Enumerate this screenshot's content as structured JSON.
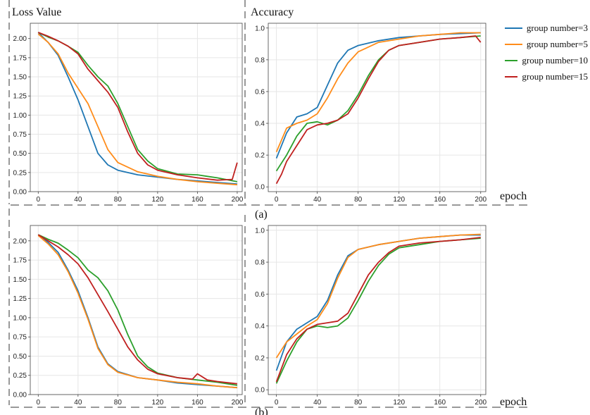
{
  "colors": {
    "group3": "#1f77b4",
    "group5": "#ff8c1a",
    "group10": "#2ca02c",
    "group15": "#c0201f"
  },
  "labels": {
    "loss_title": "Loss Value",
    "acc_title": "Accuracy",
    "epoch_top": "epoch",
    "epoch_bottom": "epoch",
    "sub_a": "(a)",
    "sub_b": "(b)"
  },
  "legend": [
    {
      "label": "group number=3",
      "color": "#1f77b4"
    },
    {
      "label": "group number=5",
      "color": "#ff8c1a"
    },
    {
      "label": "group number=10",
      "color": "#2ca02c"
    },
    {
      "label": "group number=15",
      "color": "#c0201f"
    }
  ],
  "chart_data": [
    {
      "id": "a-loss",
      "type": "line",
      "title": "Loss Value",
      "xlabel": "epoch",
      "ylabel": "",
      "xlim": [
        -8,
        205
      ],
      "ylim": [
        0,
        2.2
      ],
      "xticks": [
        0,
        40,
        80,
        120,
        160,
        200
      ],
      "yticks": [
        0.0,
        0.25,
        0.5,
        0.75,
        1.0,
        1.25,
        1.5,
        1.75,
        2.0
      ],
      "ytick_labels": [
        "0.00",
        "0.25",
        "0.50",
        "0.75",
        "1.00",
        "1.25",
        "1.50",
        "1.75",
        "2.00"
      ],
      "grid": true,
      "series": [
        {
          "name": "group number=3",
          "color": "#1f77b4",
          "x": [
            0,
            10,
            20,
            30,
            40,
            50,
            60,
            70,
            80,
            100,
            120,
            140,
            160,
            180,
            200
          ],
          "y": [
            2.08,
            1.95,
            1.78,
            1.5,
            1.2,
            0.85,
            0.5,
            0.35,
            0.28,
            0.22,
            0.19,
            0.16,
            0.14,
            0.12,
            0.1
          ]
        },
        {
          "name": "group number=5",
          "color": "#ff8c1a",
          "x": [
            0,
            10,
            20,
            30,
            40,
            50,
            60,
            70,
            80,
            100,
            120,
            140,
            160,
            180,
            200
          ],
          "y": [
            2.06,
            1.95,
            1.8,
            1.55,
            1.35,
            1.15,
            0.85,
            0.55,
            0.38,
            0.26,
            0.2,
            0.16,
            0.13,
            0.11,
            0.09
          ]
        },
        {
          "name": "group number=10",
          "color": "#2ca02c",
          "x": [
            0,
            10,
            20,
            30,
            40,
            50,
            60,
            70,
            80,
            90,
            100,
            110,
            120,
            140,
            160,
            170,
            180,
            200
          ],
          "y": [
            2.08,
            2.02,
            1.97,
            1.9,
            1.82,
            1.65,
            1.5,
            1.38,
            1.15,
            0.85,
            0.55,
            0.4,
            0.3,
            0.23,
            0.22,
            0.2,
            0.18,
            0.13
          ]
        },
        {
          "name": "group number=15",
          "color": "#c0201f",
          "x": [
            0,
            10,
            20,
            30,
            40,
            50,
            60,
            70,
            80,
            90,
            100,
            110,
            120,
            140,
            160,
            180,
            195,
            200
          ],
          "y": [
            2.08,
            2.03,
            1.97,
            1.9,
            1.8,
            1.6,
            1.45,
            1.3,
            1.1,
            0.78,
            0.5,
            0.35,
            0.28,
            0.22,
            0.18,
            0.15,
            0.16,
            0.38
          ]
        }
      ]
    },
    {
      "id": "a-acc",
      "type": "line",
      "title": "Accuracy",
      "xlabel": "epoch",
      "ylabel": "",
      "xlim": [
        -8,
        205
      ],
      "ylim": [
        -0.03,
        1.03
      ],
      "xticks": [
        0,
        40,
        80,
        120,
        160,
        200
      ],
      "yticks": [
        0.0,
        0.2,
        0.4,
        0.6,
        0.8,
        1.0
      ],
      "ytick_labels": [
        "0.0",
        "0.2",
        "0.4",
        "0.6",
        "0.8",
        "1.0"
      ],
      "grid": true,
      "series": [
        {
          "name": "group number=3",
          "color": "#1f77b4",
          "x": [
            0,
            10,
            20,
            30,
            40,
            50,
            60,
            70,
            80,
            100,
            120,
            140,
            160,
            180,
            200
          ],
          "y": [
            0.18,
            0.34,
            0.44,
            0.46,
            0.5,
            0.64,
            0.78,
            0.86,
            0.89,
            0.92,
            0.94,
            0.95,
            0.96,
            0.965,
            0.97
          ]
        },
        {
          "name": "group number=5",
          "color": "#ff8c1a",
          "x": [
            0,
            10,
            20,
            30,
            40,
            50,
            60,
            70,
            80,
            100,
            120,
            140,
            160,
            180,
            200
          ],
          "y": [
            0.22,
            0.37,
            0.4,
            0.42,
            0.46,
            0.56,
            0.68,
            0.78,
            0.85,
            0.91,
            0.93,
            0.95,
            0.96,
            0.97,
            0.97
          ]
        },
        {
          "name": "group number=10",
          "color": "#2ca02c",
          "x": [
            0,
            10,
            20,
            30,
            40,
            50,
            60,
            70,
            80,
            90,
            100,
            110,
            120,
            140,
            160,
            180,
            200
          ],
          "y": [
            0.1,
            0.2,
            0.32,
            0.4,
            0.41,
            0.39,
            0.42,
            0.48,
            0.58,
            0.7,
            0.8,
            0.86,
            0.89,
            0.91,
            0.93,
            0.94,
            0.95
          ]
        },
        {
          "name": "group number=15",
          "color": "#c0201f",
          "x": [
            0,
            5,
            10,
            20,
            30,
            40,
            50,
            60,
            70,
            80,
            90,
            100,
            110,
            120,
            140,
            160,
            180,
            195,
            200
          ],
          "y": [
            0.02,
            0.08,
            0.16,
            0.26,
            0.36,
            0.39,
            0.4,
            0.42,
            0.46,
            0.56,
            0.68,
            0.79,
            0.86,
            0.89,
            0.91,
            0.93,
            0.94,
            0.95,
            0.91
          ]
        }
      ]
    },
    {
      "id": "b-loss",
      "type": "line",
      "title": "",
      "xlabel": "epoch",
      "ylabel": "",
      "xlim": [
        -8,
        205
      ],
      "ylim": [
        0,
        2.2
      ],
      "xticks": [
        0,
        40,
        80,
        120,
        160,
        200
      ],
      "yticks": [
        0.0,
        0.25,
        0.5,
        0.75,
        1.0,
        1.25,
        1.5,
        1.75,
        2.0
      ],
      "ytick_labels": [
        "0.00",
        "0.25",
        "0.50",
        "0.75",
        "1.00",
        "1.25",
        "1.50",
        "1.75",
        "2.00"
      ],
      "grid": true,
      "series": [
        {
          "name": "group number=3",
          "color": "#1f77b4",
          "x": [
            0,
            10,
            20,
            30,
            40,
            50,
            60,
            70,
            80,
            100,
            120,
            140,
            160,
            180,
            200
          ],
          "y": [
            2.08,
            1.98,
            1.85,
            1.62,
            1.35,
            1.0,
            0.62,
            0.4,
            0.3,
            0.22,
            0.19,
            0.15,
            0.13,
            0.11,
            0.09
          ]
        },
        {
          "name": "group number=5",
          "color": "#ff8c1a",
          "x": [
            0,
            10,
            20,
            30,
            40,
            50,
            60,
            70,
            80,
            100,
            120,
            140,
            160,
            180,
            200
          ],
          "y": [
            2.07,
            1.96,
            1.82,
            1.6,
            1.32,
            0.98,
            0.6,
            0.39,
            0.29,
            0.22,
            0.19,
            0.16,
            0.14,
            0.11,
            0.09
          ]
        },
        {
          "name": "group number=10",
          "color": "#2ca02c",
          "x": [
            0,
            10,
            20,
            30,
            40,
            50,
            60,
            70,
            80,
            90,
            100,
            110,
            120,
            140,
            160,
            180,
            200
          ],
          "y": [
            2.08,
            2.02,
            1.97,
            1.88,
            1.78,
            1.62,
            1.52,
            1.35,
            1.1,
            0.78,
            0.5,
            0.36,
            0.28,
            0.22,
            0.19,
            0.16,
            0.12
          ]
        },
        {
          "name": "group number=15",
          "color": "#c0201f",
          "x": [
            0,
            10,
            20,
            30,
            40,
            50,
            60,
            70,
            80,
            90,
            100,
            110,
            120,
            140,
            155,
            160,
            170,
            180,
            200
          ],
          "y": [
            2.08,
            2.0,
            1.92,
            1.82,
            1.7,
            1.52,
            1.3,
            1.08,
            0.85,
            0.62,
            0.45,
            0.33,
            0.27,
            0.22,
            0.2,
            0.27,
            0.19,
            0.17,
            0.14
          ]
        }
      ]
    },
    {
      "id": "b-acc",
      "type": "line",
      "title": "",
      "xlabel": "epoch",
      "ylabel": "",
      "xlim": [
        -8,
        205
      ],
      "ylim": [
        -0.03,
        1.03
      ],
      "xticks": [
        0,
        40,
        80,
        120,
        160,
        200
      ],
      "yticks": [
        0.0,
        0.2,
        0.4,
        0.6,
        0.8,
        1.0
      ],
      "ytick_labels": [
        "0.0",
        "0.2",
        "0.4",
        "0.6",
        "0.8",
        "1.0"
      ],
      "grid": true,
      "series": [
        {
          "name": "group number=3",
          "color": "#1f77b4",
          "x": [
            0,
            10,
            20,
            30,
            40,
            50,
            60,
            70,
            80,
            100,
            120,
            140,
            160,
            180,
            200
          ],
          "y": [
            0.12,
            0.3,
            0.38,
            0.42,
            0.46,
            0.56,
            0.72,
            0.84,
            0.88,
            0.91,
            0.93,
            0.95,
            0.96,
            0.97,
            0.97
          ]
        },
        {
          "name": "group number=5",
          "color": "#ff8c1a",
          "x": [
            0,
            10,
            20,
            30,
            40,
            50,
            60,
            70,
            80,
            100,
            120,
            140,
            160,
            180,
            200
          ],
          "y": [
            0.2,
            0.3,
            0.35,
            0.4,
            0.44,
            0.54,
            0.7,
            0.83,
            0.88,
            0.91,
            0.93,
            0.95,
            0.96,
            0.97,
            0.975
          ]
        },
        {
          "name": "group number=10",
          "color": "#2ca02c",
          "x": [
            0,
            10,
            20,
            30,
            40,
            50,
            60,
            70,
            80,
            90,
            100,
            110,
            120,
            140,
            160,
            180,
            200
          ],
          "y": [
            0.04,
            0.18,
            0.3,
            0.38,
            0.4,
            0.39,
            0.4,
            0.45,
            0.56,
            0.68,
            0.78,
            0.85,
            0.89,
            0.91,
            0.93,
            0.94,
            0.95
          ]
        },
        {
          "name": "group number=15",
          "color": "#c0201f",
          "x": [
            0,
            10,
            20,
            30,
            40,
            50,
            60,
            70,
            80,
            90,
            100,
            110,
            120,
            140,
            160,
            180,
            200
          ],
          "y": [
            0.05,
            0.22,
            0.32,
            0.38,
            0.41,
            0.42,
            0.43,
            0.48,
            0.6,
            0.72,
            0.8,
            0.86,
            0.9,
            0.92,
            0.93,
            0.94,
            0.955
          ]
        }
      ]
    }
  ]
}
